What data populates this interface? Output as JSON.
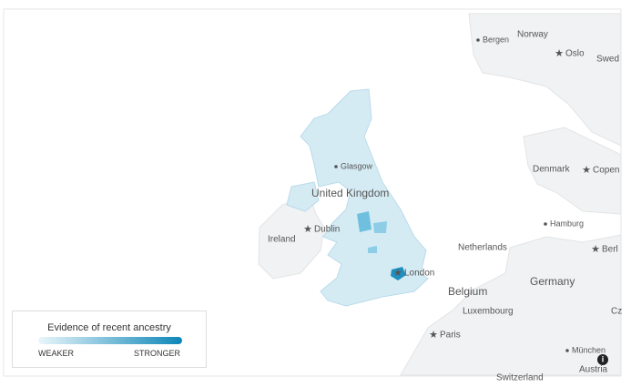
{
  "map": {
    "labels": [
      {
        "text": "Bergen",
        "kind": "city"
      },
      {
        "text": "Norway",
        "kind": "country"
      },
      {
        "text": "Oslo",
        "kind": "capital"
      },
      {
        "text": "Swed",
        "kind": "country"
      },
      {
        "text": "Denmark",
        "kind": "country"
      },
      {
        "text": "Copen",
        "kind": "capital"
      },
      {
        "text": "Glasgow",
        "kind": "city"
      },
      {
        "text": "United Kingdom",
        "kind": "country-large"
      },
      {
        "text": "Dublin",
        "kind": "capital"
      },
      {
        "text": "Ireland",
        "kind": "country"
      },
      {
        "text": "Hamburg",
        "kind": "city"
      },
      {
        "text": "Netherlands",
        "kind": "country"
      },
      {
        "text": "Berl",
        "kind": "capital"
      },
      {
        "text": "London",
        "kind": "capital"
      },
      {
        "text": "Belgium",
        "kind": "country-large"
      },
      {
        "text": "Germany",
        "kind": "country-large"
      },
      {
        "text": "Luxembourg",
        "kind": "country"
      },
      {
        "text": "Cz",
        "kind": "country"
      },
      {
        "text": "Paris",
        "kind": "capital"
      },
      {
        "text": "München",
        "kind": "city"
      },
      {
        "text": "Austria",
        "kind": "country"
      },
      {
        "text": "Switzerland",
        "kind": "country"
      }
    ],
    "legend": {
      "title": "Evidence of recent ancestry",
      "min_label": "WEAKER",
      "max_label": "STRONGER"
    }
  }
}
